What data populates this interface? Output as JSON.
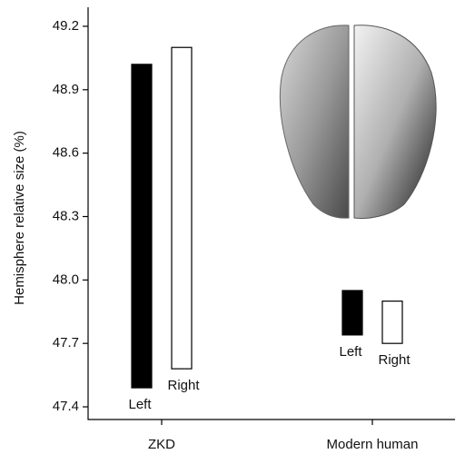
{
  "chart_data": {
    "type": "floating-bar",
    "y_label": "Hemisphere relative size (%)",
    "categories": [
      "ZKD",
      "Modern human"
    ],
    "series": [
      {
        "name": "Left",
        "color": "#000000",
        "values": [
          [
            47.49,
            49.02
          ],
          [
            47.74,
            47.95
          ]
        ]
      },
      {
        "name": "Right",
        "color": "#ffffff",
        "values": [
          [
            47.58,
            49.1
          ],
          [
            47.7,
            47.9
          ]
        ]
      }
    ],
    "ylim": [
      47.34,
      49.29
    ],
    "yticks": [
      47.4,
      47.7,
      {
        "value": 48,
        "label": "48.0"
      },
      48.3,
      48.6,
      48.9,
      49.2
    ]
  }
}
